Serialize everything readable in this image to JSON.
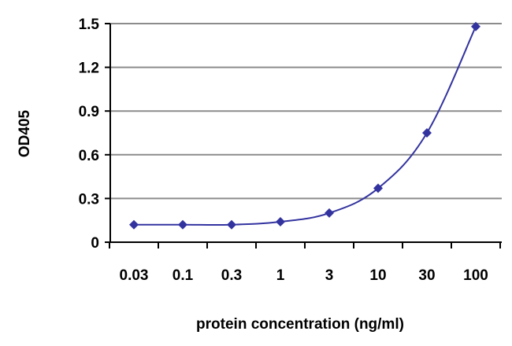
{
  "chart_data": {
    "type": "line",
    "title": "",
    "xlabel": "protein concentration (ng/ml)",
    "ylabel": "OD405",
    "categories": [
      "0.03",
      "0.1",
      "0.3",
      "1",
      "3",
      "10",
      "30",
      "100"
    ],
    "yticks": [
      "0",
      "0.3",
      "0.6",
      "0.9",
      "1.2",
      "1.5"
    ],
    "ylim": [
      0,
      1.5
    ],
    "grid": true,
    "legend": "none",
    "series": [
      {
        "values": [
          0.12,
          0.12,
          0.12,
          0.14,
          0.2,
          0.37,
          0.75,
          1.48
        ]
      }
    ],
    "colors": {
      "series": "#3333a0",
      "grid": "#8c8c8c",
      "axis": "#000000"
    }
  }
}
